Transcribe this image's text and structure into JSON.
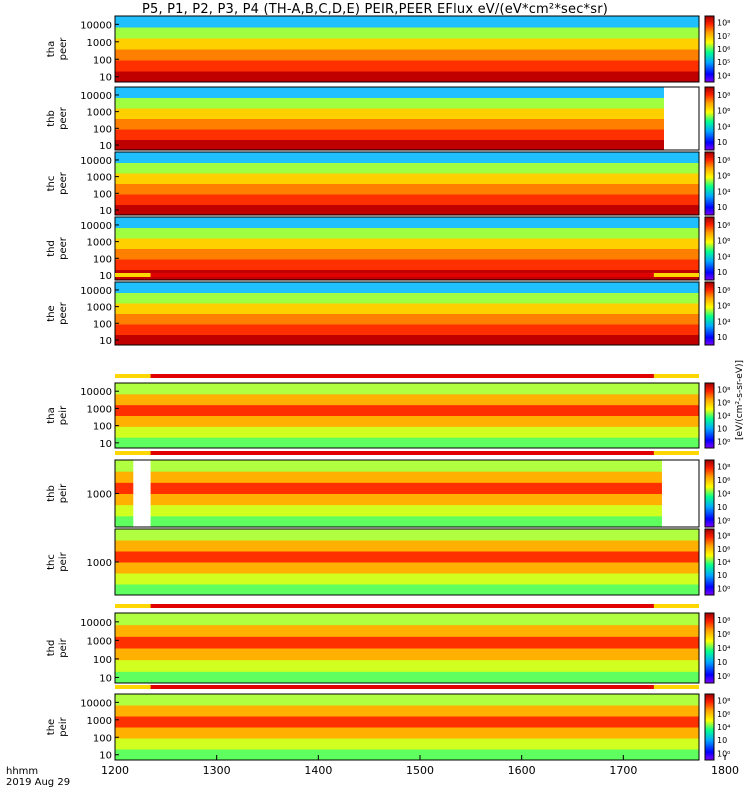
{
  "title": "P5, P1, P2, P3, P4 (TH-A,B,C,D,E) PEIR,PEER EFlux eV/(eV*cm²*sec*sr)",
  "time_axis": {
    "label": "hhmm",
    "date": "2019 Aug 29",
    "ticks": [
      "1200",
      "1300",
      "1400",
      "1500",
      "1600",
      "1700",
      "1800"
    ],
    "range": [
      1200,
      1800
    ]
  },
  "colorbar": {
    "units_label": "eV/(eV*cm²*sec*sr)",
    "units_label_lower": "[eV/(cm²-s-sr-eV)]",
    "ticks": [
      "10⁴",
      "10⁵",
      "10⁶",
      "10⁷",
      "10⁸"
    ],
    "ticks_short": [
      "10⁲",
      "10⁴",
      "10⁶",
      "10⁸"
    ],
    "ticks_low": [
      "10⁰",
      "10⁲",
      "10⁴",
      "10⁶",
      "10⁸"
    ]
  },
  "chart_data": [
    {
      "type": "heatmap",
      "probe": "tha",
      "species": "peer",
      "ylabel": "tha peer",
      "yticks": [
        "10000",
        "1000",
        "100",
        "10"
      ],
      "scale": "log",
      "ylim": [
        5,
        30000
      ],
      "missing": [],
      "state_bar": false
    },
    {
      "type": "heatmap",
      "probe": "thb",
      "species": "peer",
      "ylabel": "thb peer",
      "yticks": [
        "10000",
        "1000",
        "100",
        "10"
      ],
      "scale": "log",
      "ylim": [
        5,
        30000
      ],
      "missing": [
        [
          1740,
          1785
        ]
      ],
      "state_bar": false
    },
    {
      "type": "heatmap",
      "probe": "thc",
      "species": "peer",
      "ylabel": "thc peer",
      "yticks": [
        "10000",
        "1000",
        "100",
        "10"
      ],
      "scale": "log",
      "ylim": [
        5,
        30000
      ],
      "missing": [],
      "state_bar": false
    },
    {
      "type": "heatmap",
      "probe": "thd",
      "species": "peer",
      "ylabel": "thd peer",
      "yticks": [
        "10000",
        "1000",
        "100",
        "10"
      ],
      "scale": "log",
      "ylim": [
        5,
        30000
      ],
      "missing": [],
      "state_bar": false
    },
    {
      "type": "heatmap",
      "probe": "the",
      "species": "peer",
      "ylabel": "the peer",
      "yticks": [
        "10000",
        "1000",
        "100",
        "10"
      ],
      "scale": "log",
      "ylim": [
        5,
        30000
      ],
      "missing": [],
      "state_bar": true
    },
    {
      "type": "heatmap",
      "probe": "tha",
      "species": "peir",
      "ylabel": "tha peir",
      "yticks": [
        "10000",
        "1000",
        "100",
        "10"
      ],
      "scale": "log",
      "ylim": [
        5,
        30000
      ],
      "missing": [],
      "state_bar": true
    },
    {
      "type": "heatmap",
      "probe": "thb",
      "species": "peir",
      "ylabel": "thb peir",
      "yticks": [
        "1000"
      ],
      "scale": "log",
      "ylim": [
        5,
        30000
      ],
      "missing": [
        [
          1218,
          1235
        ],
        [
          1738,
          1780
        ]
      ],
      "state_bar": true
    },
    {
      "type": "heatmap",
      "probe": "thc",
      "species": "peir",
      "ylabel": "thc peir",
      "yticks": [
        "1000"
      ],
      "scale": "log",
      "ylim": [
        5,
        30000
      ],
      "missing": [],
      "state_bar": false
    },
    {
      "type": "heatmap",
      "probe": "thd",
      "species": "peir",
      "ylabel": "thd peir",
      "yticks": [
        "10000",
        "1000",
        "100",
        "10"
      ],
      "scale": "log",
      "ylim": [
        5,
        30000
      ],
      "missing": [],
      "state_bar": true
    },
    {
      "type": "heatmap",
      "probe": "the",
      "species": "peir",
      "ylabel": "the peir",
      "yticks": [
        "10000",
        "1000",
        "100",
        "10"
      ],
      "scale": "log",
      "ylim": [
        5,
        30000
      ],
      "missing": [],
      "state_bar": true
    }
  ]
}
